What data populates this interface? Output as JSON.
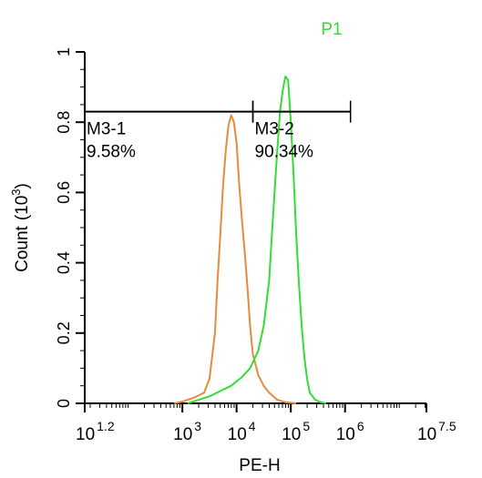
{
  "chart_data": {
    "type": "line",
    "title": "P1",
    "xlabel": "PE-H",
    "ylabel_main": "Count",
    "ylabel_unit_base": "(10",
    "ylabel_unit_exp": "3",
    "ylabel_unit_close": ")",
    "x_scale": "log",
    "xlim": [
      1.2,
      7.5
    ],
    "ylim": [
      0,
      1
    ],
    "grid": false,
    "y_ticks": [
      {
        "value": 0,
        "label": "0"
      },
      {
        "value": 0.2,
        "label": "0.2"
      },
      {
        "value": 0.4,
        "label": "0.4"
      },
      {
        "value": 0.6,
        "label": "0.6"
      },
      {
        "value": 0.8,
        "label": "0.8"
      },
      {
        "value": 1,
        "label": "1"
      }
    ],
    "x_ticks": [
      {
        "exp": 1.2,
        "base": "10",
        "sup": "1.2"
      },
      {
        "exp": 3,
        "base": "10",
        "sup": "3"
      },
      {
        "exp": 4,
        "base": "10",
        "sup": "4"
      },
      {
        "exp": 5,
        "base": "10",
        "sup": "5"
      },
      {
        "exp": 6,
        "base": "10",
        "sup": "6"
      },
      {
        "exp": 7.5,
        "base": "10",
        "sup": "7.5"
      }
    ],
    "gates": [
      {
        "name": "M3-1",
        "percent": "9.58%",
        "x_range": [
          1.2,
          4.3
        ]
      },
      {
        "name": "M3-2",
        "percent": "90.34%",
        "x_range": [
          4.3,
          6.1
        ]
      }
    ],
    "gate_y": 0.83,
    "series": [
      {
        "color": "#e88a3c",
        "x": [
          2.85,
          3.0,
          3.2,
          3.4,
          3.5,
          3.6,
          3.65,
          3.7,
          3.75,
          3.8,
          3.85,
          3.9,
          3.95,
          4.0,
          4.05,
          4.1,
          4.15,
          4.2,
          4.25,
          4.3,
          4.4,
          4.5,
          4.6,
          4.75,
          4.9,
          5.1
        ],
        "y": [
          0.0,
          0.005,
          0.015,
          0.03,
          0.07,
          0.2,
          0.35,
          0.48,
          0.62,
          0.72,
          0.79,
          0.82,
          0.8,
          0.74,
          0.62,
          0.52,
          0.43,
          0.33,
          0.22,
          0.14,
          0.08,
          0.05,
          0.03,
          0.01,
          0.003,
          0.0
        ]
      },
      {
        "color": "#33dd33",
        "x": [
          3.1,
          3.3,
          3.5,
          3.7,
          3.9,
          4.1,
          4.25,
          4.4,
          4.5,
          4.6,
          4.65,
          4.7,
          4.75,
          4.8,
          4.85,
          4.9,
          4.95,
          5.0,
          5.05,
          5.1,
          5.15,
          5.2,
          5.25,
          5.3,
          5.35,
          5.45,
          5.55,
          5.65
        ],
        "y": [
          0.0,
          0.01,
          0.02,
          0.035,
          0.05,
          0.075,
          0.1,
          0.15,
          0.22,
          0.35,
          0.48,
          0.6,
          0.72,
          0.83,
          0.89,
          0.93,
          0.92,
          0.8,
          0.65,
          0.48,
          0.34,
          0.22,
          0.13,
          0.07,
          0.03,
          0.01,
          0.003,
          0.0
        ]
      }
    ]
  }
}
